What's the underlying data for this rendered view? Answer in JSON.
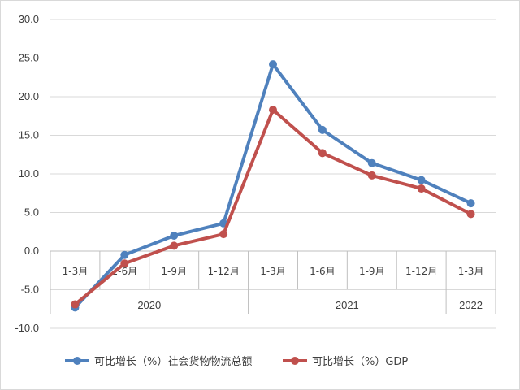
{
  "chart_data": {
    "type": "line",
    "title": "",
    "xlabel": "",
    "ylabel": "",
    "ylim": [
      -10,
      30
    ],
    "yticks": [
      -10,
      -5,
      0,
      5,
      10,
      15,
      20,
      25,
      30
    ],
    "ytick_labels": [
      "-10.0",
      "-5.0",
      "0.0",
      "5.0",
      "10.0",
      "15.0",
      "20.0",
      "25.0",
      "30.0"
    ],
    "grid": "horizontal",
    "legend": "bottom",
    "categories": [
      "1-3月",
      "1-6月",
      "1-9月",
      "1-12月",
      "1-3月",
      "1-6月",
      "1-9月",
      "1-12月",
      "1-3月"
    ],
    "groups": [
      {
        "label": "2020",
        "count": 4
      },
      {
        "label": "2021",
        "count": 4
      },
      {
        "label": "2022",
        "count": 1
      }
    ],
    "series": [
      {
        "name": "可比增长（%）社会货物物流总额",
        "color": "#4F81BD",
        "values": [
          -7.3,
          -0.5,
          2.0,
          3.6,
          24.2,
          15.7,
          11.4,
          9.2,
          6.2
        ]
      },
      {
        "name": "可比增长（%）GDP",
        "color": "#C0504D",
        "values": [
          -6.9,
          -1.6,
          0.7,
          2.2,
          18.3,
          12.7,
          9.8,
          8.1,
          4.8
        ]
      }
    ]
  }
}
